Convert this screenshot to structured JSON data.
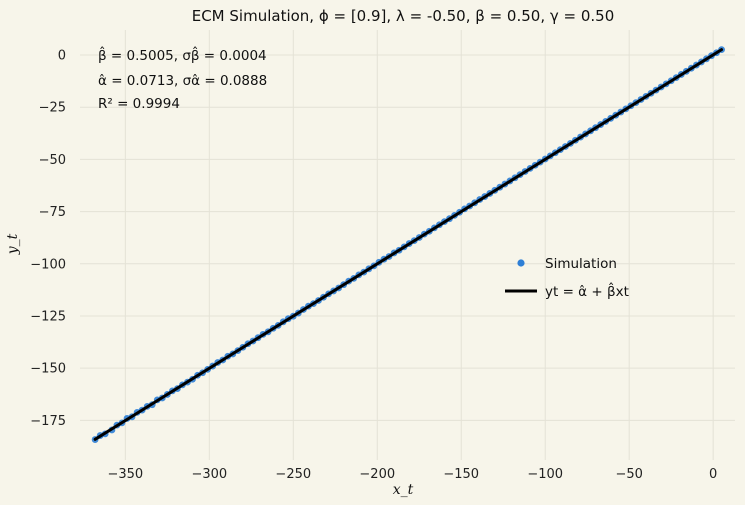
{
  "chart_data": {
    "type": "scatter",
    "title": "ECM Simulation, ϕ = [0.9], λ = -0.50, β = 0.50, γ = 0.50",
    "xlabel": "x_t",
    "ylabel": "y_t",
    "xlim": [
      -377,
      13
    ],
    "ylim": [
      -194,
      12
    ],
    "xticks": [
      -350,
      -300,
      -250,
      -200,
      -150,
      -100,
      -50,
      0
    ],
    "yticks": [
      0,
      -25,
      -50,
      -75,
      -100,
      -125,
      -150,
      -175
    ],
    "grid": true,
    "background": "#f7f5ea",
    "grid_color": "#e4e2d6",
    "annotations": [
      "β̂ = 0.5005, σβ̂ = 0.0004",
      "α̂ = 0.0713, σα̂ = 0.0888",
      "R² = 0.9994"
    ],
    "legend": {
      "placement": "center-right",
      "entries": [
        "Simulation",
        "yt = α̂ + β̂xt"
      ]
    },
    "series": [
      {
        "name": "Simulation",
        "kind": "scatter",
        "color": "#2e7fd6",
        "x": [
          -368,
          -365,
          -362,
          -358,
          -355,
          -352,
          -349,
          -346,
          -343,
          -340,
          -337,
          -334,
          -331,
          -328,
          -325,
          -322,
          -319,
          -316,
          -313,
          -310,
          -307,
          -304,
          -301,
          -298,
          -295,
          -292,
          -289,
          -286,
          -283,
          -280,
          -277,
          -274,
          -271,
          -268,
          -265,
          -262,
          -259,
          -256,
          -253,
          -250,
          -247,
          -244,
          -241,
          -238,
          -235,
          -232,
          -229,
          -226,
          -223,
          -220,
          -217,
          -214,
          -211,
          -208,
          -205,
          -202,
          -199,
          -196,
          -193,
          -190,
          -187,
          -184,
          -181,
          -178,
          -175,
          -172,
          -169,
          -166,
          -163,
          -160,
          -157,
          -154,
          -151,
          -148,
          -145,
          -142,
          -139,
          -136,
          -133,
          -130,
          -127,
          -124,
          -121,
          -118,
          -115,
          -112,
          -109,
          -106,
          -103,
          -100,
          -97,
          -94,
          -91,
          -88,
          -85,
          -82,
          -79,
          -76,
          -73,
          -70,
          -67,
          -64,
          -61,
          -58,
          -55,
          -52,
          -49,
          -46,
          -43,
          -40,
          -37,
          -34,
          -31,
          -28,
          -25,
          -22,
          -19,
          -16,
          -13,
          -10,
          -7,
          -4,
          -1,
          2,
          5
        ],
        "y": [
          -184.2,
          -182.3,
          -181.5,
          -179.6,
          -177.3,
          -176.2,
          -174.1,
          -173.3,
          -171.2,
          -170.1,
          -168.3,
          -167.5,
          -165.2,
          -164.3,
          -162.6,
          -160.9,
          -159.8,
          -158.0,
          -156.7,
          -155.3,
          -153.4,
          -152.2,
          -150.6,
          -149.0,
          -147.3,
          -146.1,
          -144.3,
          -143.2,
          -141.6,
          -140.0,
          -138.3,
          -137.0,
          -135.4,
          -133.8,
          -132.6,
          -130.9,
          -129.5,
          -127.8,
          -126.3,
          -125.1,
          -123.6,
          -121.9,
          -120.3,
          -119.1,
          -117.6,
          -116.0,
          -114.4,
          -113.0,
          -111.6,
          -110.0,
          -108.3,
          -107.0,
          -105.3,
          -104.0,
          -102.4,
          -101.0,
          -99.3,
          -97.8,
          -96.5,
          -94.8,
          -93.5,
          -91.9,
          -90.3,
          -88.9,
          -87.4,
          -85.8,
          -84.4,
          -82.8,
          -81.3,
          -79.8,
          -78.4,
          -76.8,
          -75.3,
          -73.7,
          -72.3,
          -70.8,
          -69.2,
          -67.8,
          -66.3,
          -64.8,
          -63.3,
          -61.8,
          -60.3,
          -58.8,
          -57.3,
          -55.8,
          -54.3,
          -52.8,
          -51.3,
          -49.8,
          -48.3,
          -46.8,
          -45.3,
          -43.8,
          -42.3,
          -40.8,
          -39.3,
          -37.8,
          -36.3,
          -34.8,
          -33.3,
          -31.8,
          -30.3,
          -28.8,
          -27.3,
          -25.8,
          -24.3,
          -22.8,
          -21.3,
          -19.8,
          -18.3,
          -16.8,
          -15.3,
          -13.8,
          -12.3,
          -10.8,
          -9.3,
          -7.8,
          -6.3,
          -4.8,
          -3.3,
          -1.8,
          -0.3,
          1.1,
          2.6
        ]
      },
      {
        "name": "yt = α̂ + β̂xt",
        "kind": "line",
        "color": "#000000",
        "x": [
          -368,
          5
        ],
        "y": [
          -184.1,
          2.6
        ]
      }
    ]
  }
}
